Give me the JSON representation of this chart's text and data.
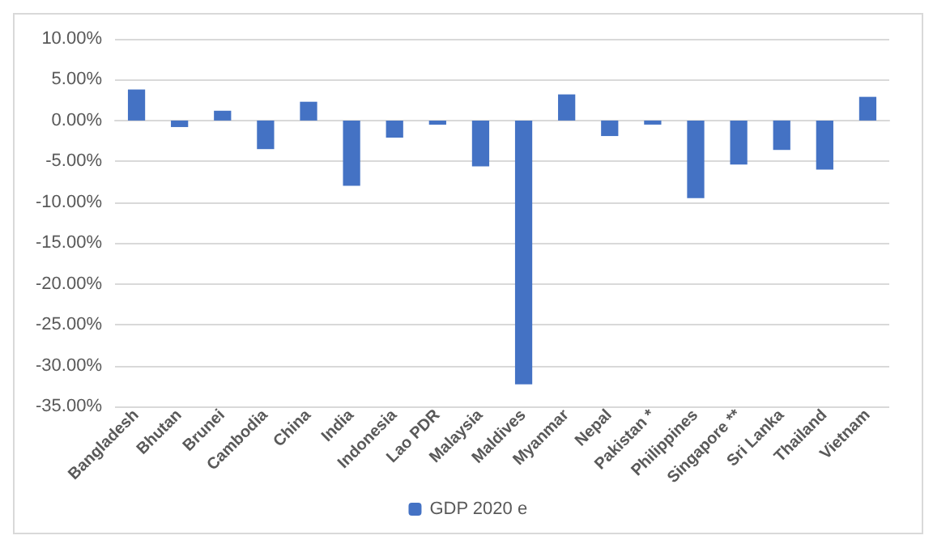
{
  "chart_data": {
    "type": "bar",
    "categories": [
      "Bangladesh",
      "Bhutan",
      "Brunei",
      "Cambodia",
      "China",
      "India",
      "Indonesia",
      "Lao PDR",
      "Malaysia",
      "Maldives",
      "Myanmar",
      "Nepal",
      "Pakistan *",
      "Philippines",
      "Singapore **",
      "Sri Lanka",
      "Thailand",
      "Vietnam"
    ],
    "series": [
      {
        "name": "GDP 2020 e",
        "color": "#4472c4",
        "values": [
          3.8,
          -0.8,
          1.2,
          -3.5,
          2.3,
          -8.0,
          -2.1,
          -0.5,
          -5.6,
          -32.3,
          3.2,
          -1.9,
          -0.5,
          -9.5,
          -5.4,
          -3.6,
          -6.0,
          2.9
        ]
      }
    ],
    "ylim": [
      -35,
      10
    ],
    "yticks": [
      {
        "value": -35,
        "label": "-35.00%"
      },
      {
        "value": -30,
        "label": "-30.00%"
      },
      {
        "value": -25,
        "label": "-25.00%"
      },
      {
        "value": -20,
        "label": "-20.00%"
      },
      {
        "value": -15,
        "label": "-15.00%"
      },
      {
        "value": -10,
        "label": "-10.00%"
      },
      {
        "value": -5,
        "label": "-5.00%"
      },
      {
        "value": 0,
        "label": "0.00%"
      },
      {
        "value": 5,
        "label": "5.00%"
      },
      {
        "value": 10,
        "label": "10.00%"
      }
    ],
    "grid": "y",
    "legend": "bottom"
  }
}
